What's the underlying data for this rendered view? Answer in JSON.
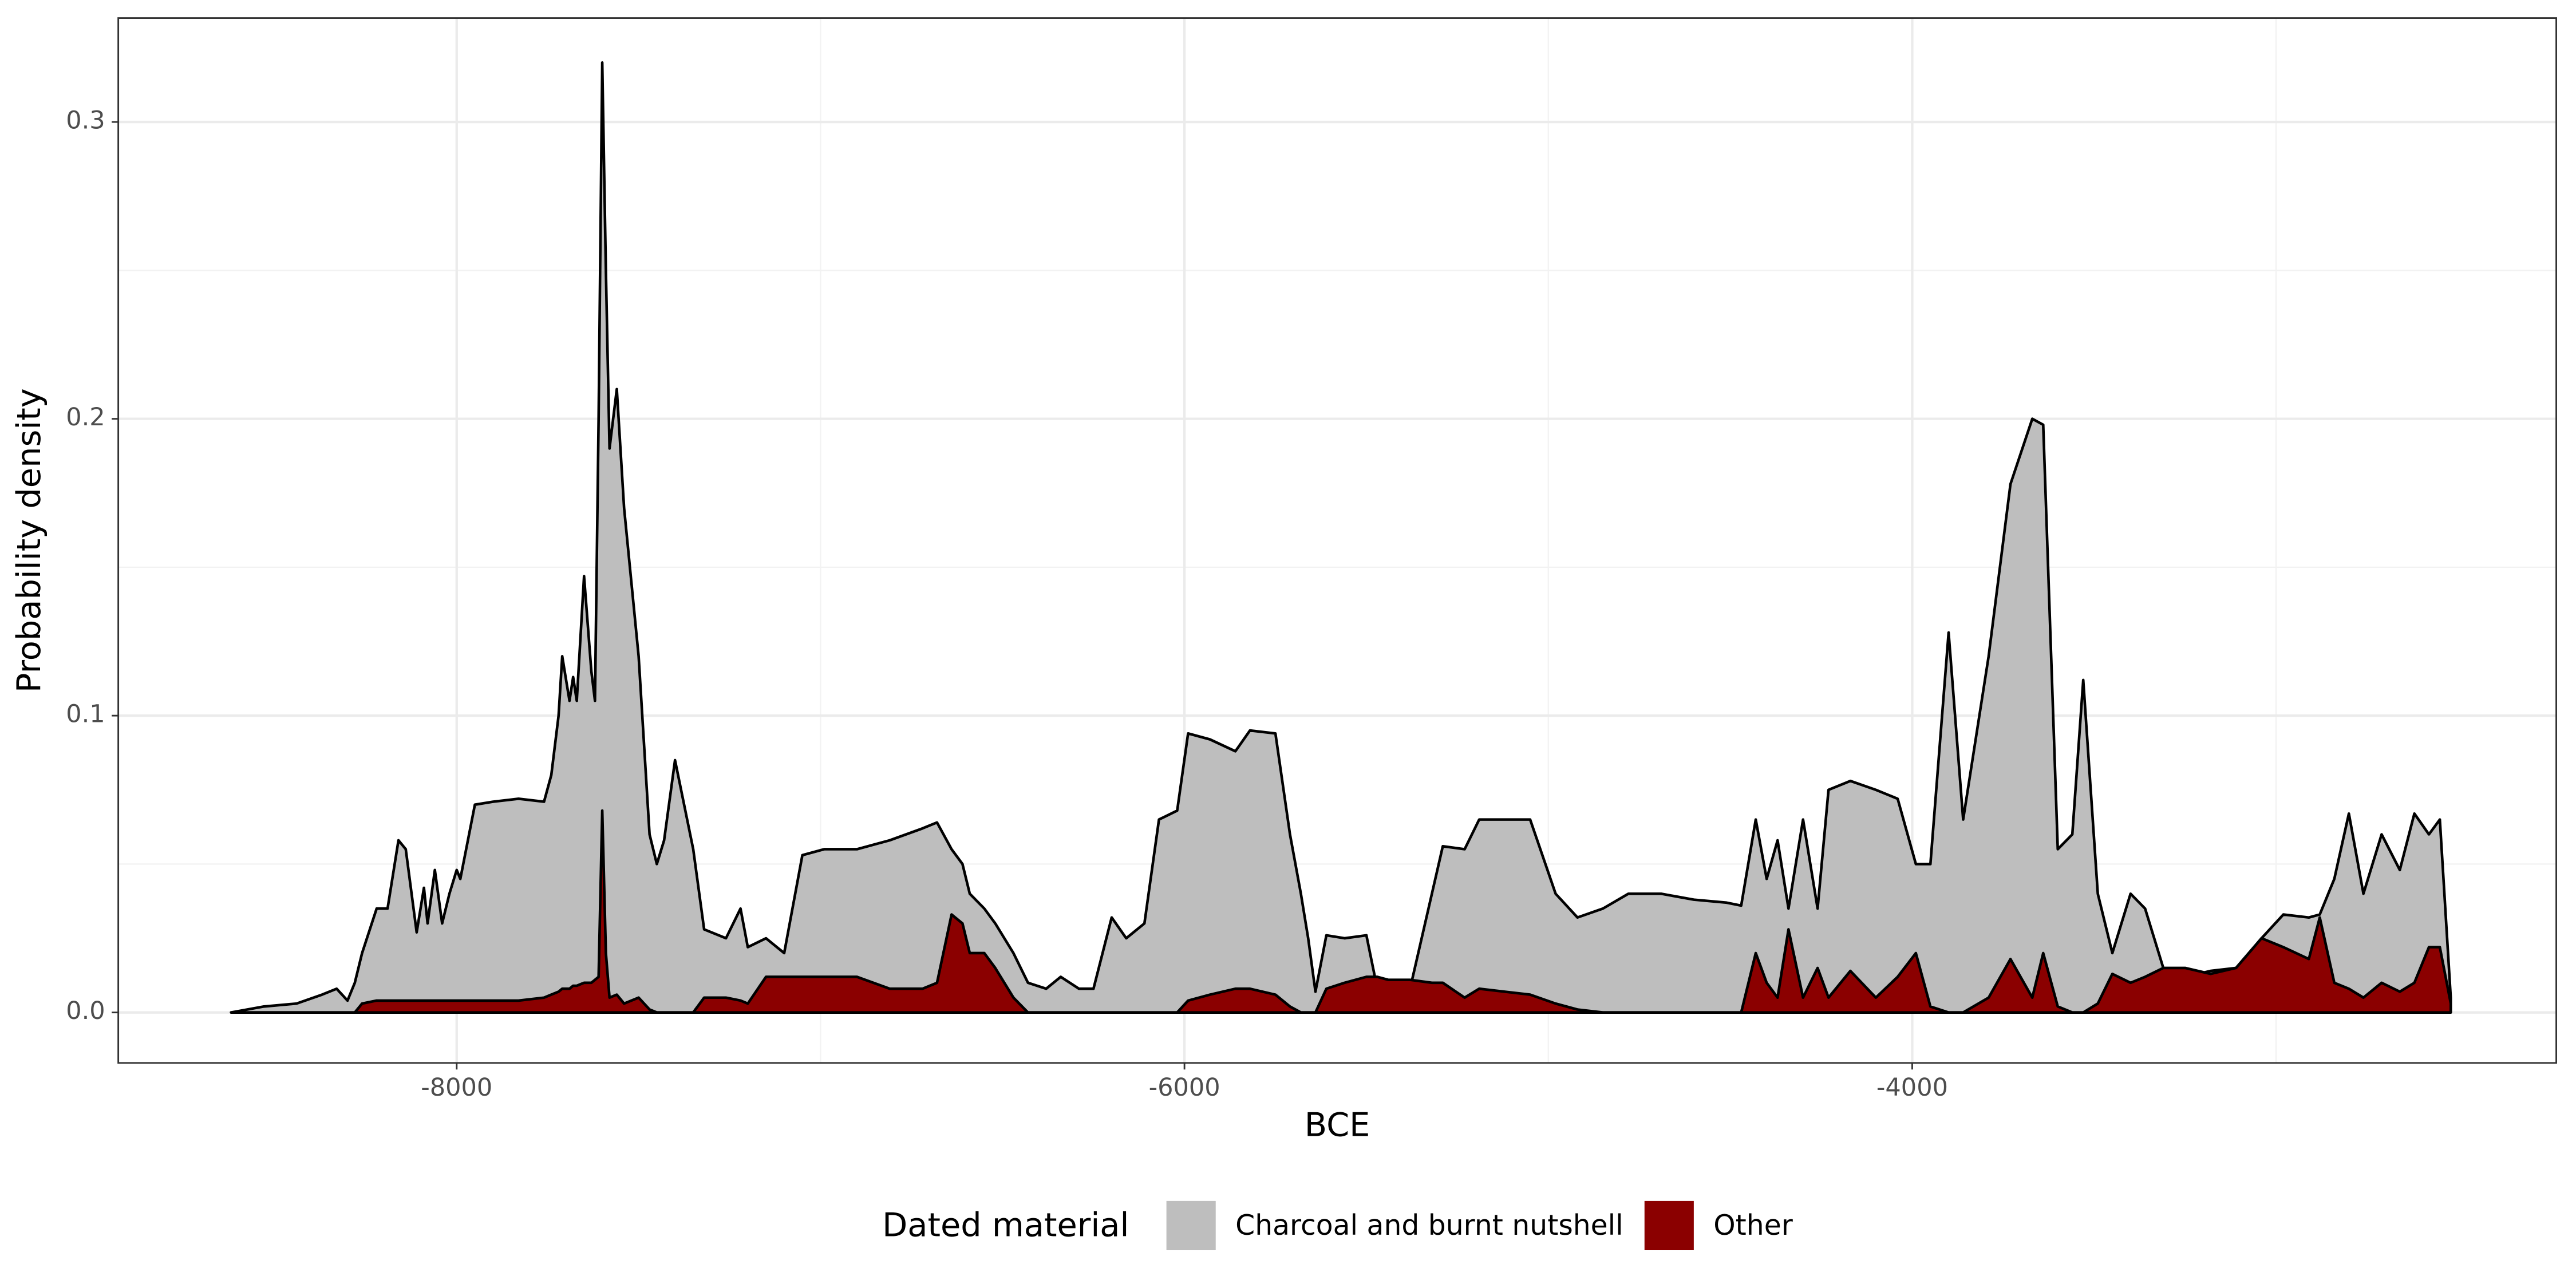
{
  "chart_data": {
    "type": "area",
    "x_label": "BCE",
    "y_label": "Probability density",
    "legend_title": "Dated material",
    "legend_position": "bottom",
    "grid": true,
    "xlim": [
      -8930,
      -2230
    ],
    "ylim": [
      -0.017,
      0.335
    ],
    "xticks": [
      -8000,
      -6000,
      -4000
    ],
    "yticks": [
      {
        "value": 0,
        "label": "0.0"
      },
      0.1,
      0.2,
      0.3
    ],
    "x_minor_ticks": [
      -7000,
      -5000,
      -3000
    ],
    "y_minor_ticks": [
      0.05,
      0.15,
      0.25
    ],
    "x": [
      -8620,
      -8530,
      -8440,
      -8370,
      -8330,
      -8300,
      -8280,
      -8260,
      -8220,
      -8190,
      -8160,
      -8140,
      -8110,
      -8090,
      -8080,
      -8060,
      -8040,
      -8020,
      -8000,
      -7990,
      -7950,
      -7900,
      -7830,
      -7760,
      -7740,
      -7720,
      -7710,
      -7690,
      -7680,
      -7670,
      -7650,
      -7630,
      -7620,
      -7610,
      -7600,
      -7590,
      -7580,
      -7560,
      -7540,
      -7500,
      -7470,
      -7450,
      -7430,
      -7400,
      -7350,
      -7320,
      -7260,
      -7220,
      -7200,
      -7150,
      -7100,
      -7050,
      -6990,
      -6900,
      -6810,
      -6720,
      -6680,
      -6640,
      -6610,
      -6590,
      -6550,
      -6520,
      -6470,
      -6430,
      -6380,
      -6340,
      -6290,
      -6250,
      -6200,
      -6160,
      -6110,
      -6070,
      -6020,
      -5990,
      -5930,
      -5860,
      -5820,
      -5750,
      -5710,
      -5680,
      -5660,
      -5640,
      -5610,
      -5560,
      -5500,
      -5470,
      -5440,
      -5380,
      -5320,
      -5290,
      -5230,
      -5190,
      -5120,
      -5050,
      -4980,
      -4920,
      -4850,
      -4780,
      -4690,
      -4600,
      -4510,
      -4470,
      -4430,
      -4400,
      -4370,
      -4340,
      -4300,
      -4260,
      -4230,
      -4170,
      -4100,
      -4040,
      -3990,
      -3950,
      -3900,
      -3860,
      -3790,
      -3730,
      -3670,
      -3640,
      -3600,
      -3560,
      -3530,
      -3490,
      -3450,
      -3400,
      -3360,
      -3310,
      -3250,
      -3180,
      -3110,
      -3040,
      -2980,
      -2910,
      -2880,
      -2840,
      -2800,
      -2760,
      -2710,
      -2660,
      -2620,
      -2580,
      -2550,
      -2520
    ],
    "series": [
      {
        "name": "Charcoal and burnt nutshell",
        "color": "#bebebe",
        "values": [
          0,
          0.002,
          0.003,
          0.006,
          0.008,
          0.004,
          0.01,
          0.02,
          0.035,
          0.035,
          0.058,
          0.055,
          0.027,
          0.042,
          0.03,
          0.048,
          0.03,
          0.04,
          0.048,
          0.045,
          0.07,
          0.071,
          0.072,
          0.071,
          0.08,
          0.1,
          0.12,
          0.105,
          0.113,
          0.105,
          0.147,
          0.115,
          0.105,
          0.2,
          0.32,
          0.25,
          0.19,
          0.21,
          0.17,
          0.12,
          0.06,
          0.05,
          0.058,
          0.085,
          0.055,
          0.028,
          0.025,
          0.035,
          0.022,
          0.025,
          0.02,
          0.053,
          0.055,
          0.055,
          0.058,
          0.062,
          0.064,
          0.055,
          0.05,
          0.04,
          0.035,
          0.03,
          0.02,
          0.01,
          0.008,
          0.012,
          0.008,
          0.008,
          0.032,
          0.025,
          0.03,
          0.065,
          0.068,
          0.094,
          0.092,
          0.088,
          0.095,
          0.094,
          0.06,
          0.04,
          0.025,
          0.007,
          0.026,
          0.025,
          0.026,
          0.008,
          0.01,
          0.008,
          0.04,
          0.056,
          0.055,
          0.065,
          0.065,
          0.065,
          0.04,
          0.032,
          0.035,
          0.04,
          0.04,
          0.038,
          0.037,
          0.036,
          0.065,
          0.045,
          0.058,
          0.035,
          0.065,
          0.035,
          0.075,
          0.078,
          0.075,
          0.072,
          0.05,
          0.05,
          0.128,
          0.065,
          0.12,
          0.178,
          0.2,
          0.198,
          0.055,
          0.06,
          0.112,
          0.04,
          0.02,
          0.04,
          0.035,
          0.015,
          0.012,
          0.014,
          0.015,
          0.025,
          0.033,
          0.032,
          0.033,
          0.045,
          0.067,
          0.04,
          0.06,
          0.048,
          0.067,
          0.06,
          0.065,
          0.005
        ]
      },
      {
        "name": "Other",
        "color": "#8b0000",
        "values": [
          0,
          0,
          0,
          0,
          0,
          0,
          0,
          0.003,
          0.004,
          0.004,
          0.004,
          0.004,
          0.004,
          0.004,
          0.004,
          0.004,
          0.004,
          0.004,
          0.004,
          0.004,
          0.004,
          0.004,
          0.004,
          0.005,
          0.006,
          0.007,
          0.008,
          0.008,
          0.009,
          0.009,
          0.01,
          0.01,
          0.011,
          0.012,
          0.068,
          0.02,
          0.005,
          0.006,
          0.003,
          0.005,
          0.001,
          0,
          0,
          0,
          0,
          0.005,
          0.005,
          0.004,
          0.003,
          0.012,
          0.012,
          0.012,
          0.012,
          0.012,
          0.008,
          0.008,
          0.01,
          0.033,
          0.03,
          0.02,
          0.02,
          0.015,
          0.005,
          0,
          0,
          0,
          0,
          0,
          0,
          0,
          0,
          0,
          0,
          0.004,
          0.006,
          0.008,
          0.008,
          0.006,
          0.002,
          0,
          0,
          0,
          0.008,
          0.01,
          0.012,
          0.012,
          0.011,
          0.011,
          0.01,
          0.01,
          0.005,
          0.008,
          0.007,
          0.006,
          0.003,
          0.001,
          0,
          0,
          0,
          0,
          0,
          0,
          0.02,
          0.01,
          0.005,
          0.028,
          0.005,
          0.015,
          0.005,
          0.014,
          0.005,
          0.012,
          0.02,
          0.002,
          0,
          0,
          0.005,
          0.018,
          0.005,
          0.02,
          0.002,
          0,
          0,
          0.003,
          0.013,
          0.01,
          0.012,
          0.015,
          0.015,
          0.013,
          0.015,
          0.025,
          0.022,
          0.018,
          0.032,
          0.01,
          0.008,
          0.005,
          0.01,
          0.007,
          0.01,
          0.022,
          0.022,
          0.003
        ]
      }
    ]
  }
}
